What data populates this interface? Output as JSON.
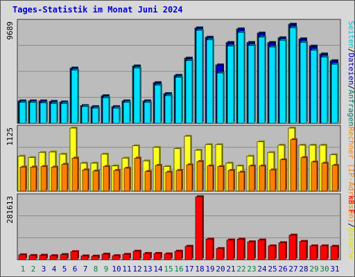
{
  "title": "Tages-Statistik im Monat Juni 2024",
  "colors": {
    "panel": "#bcbcbc",
    "hits": "#00806f",
    "files": "#0000c0",
    "pages": "#00e0ff",
    "visits": "#ffff20",
    "sites": "#ff8000",
    "kbytes": "#ff0000",
    "weekend_day": "#008040",
    "weekday": "#0000a0"
  },
  "chart_data": [
    {
      "type": "bar",
      "title": "Tages-Statistik im Monat Juni 2024",
      "ymax_label": "9689",
      "legend_label": "Seiten/Dateien/Anfragen",
      "legend_parts": [
        {
          "text": "Seiten",
          "color": "#00c0e0"
        },
        {
          "text": "/",
          "color": "#000000"
        },
        {
          "text": "Dateien",
          "color": "#0000c0"
        },
        {
          "text": "/",
          "color": "#000000"
        },
        {
          "text": "Anfragen",
          "color": "#00806f"
        }
      ],
      "ylim": [
        0,
        9689
      ],
      "series": [
        {
          "key": "hits",
          "values": [
            2150,
            2150,
            2150,
            2100,
            2050,
            5300,
            1700,
            1600,
            2650,
            1600,
            2150,
            5500,
            2150,
            3900,
            2850,
            4600,
            6250,
            9150,
            8250,
            5600,
            7750,
            9050,
            7750,
            8650,
            7750,
            8200,
            9500,
            8100,
            7400,
            6650,
            6000
          ]
        },
        {
          "key": "files",
          "values": [
            2150,
            2150,
            2150,
            2100,
            2050,
            5300,
            1700,
            1600,
            2650,
            1600,
            2150,
            5500,
            2150,
            3900,
            2850,
            4600,
            6250,
            9150,
            8250,
            5600,
            7750,
            9050,
            7750,
            8650,
            7750,
            8200,
            9500,
            8100,
            7400,
            6650,
            6000
          ]
        },
        {
          "key": "pages",
          "values": [
            2000,
            2000,
            1950,
            1900,
            1900,
            5100,
            1600,
            1450,
            2450,
            1450,
            2000,
            5300,
            2000,
            3650,
            2650,
            4400,
            6000,
            8900,
            8000,
            4800,
            7400,
            8700,
            7450,
            8250,
            7300,
            7950,
            9150,
            7750,
            7000,
            6350,
            5650
          ]
        }
      ]
    },
    {
      "type": "bar",
      "ymax_label": "1125",
      "legend_label": "Rechner (IP-Adressen)/Besuche",
      "legend_parts": [
        {
          "text": "Rechner (IP-Adressen)",
          "color": "#ff8000"
        },
        {
          "text": "/",
          "color": "#000000"
        },
        {
          "text": "Besuche",
          "color": "#e0e000"
        }
      ],
      "ylim": [
        0,
        1125
      ],
      "series": [
        {
          "key": "visits",
          "values": [
            625,
            600,
            690,
            700,
            660,
            1125,
            500,
            500,
            660,
            450,
            590,
            810,
            540,
            780,
            440,
            760,
            980,
            730,
            830,
            830,
            500,
            450,
            625,
            880,
            690,
            820,
            1125,
            820,
            820,
            820,
            650
          ]
        },
        {
          "key": "sites",
          "values": [
            430,
            430,
            440,
            430,
            480,
            590,
            380,
            360,
            440,
            370,
            410,
            590,
            350,
            460,
            340,
            370,
            470,
            530,
            450,
            440,
            370,
            340,
            450,
            450,
            380,
            560,
            920,
            600,
            520,
            500,
            460
          ]
        }
      ]
    },
    {
      "type": "bar",
      "ymax_label": "281613",
      "legend_label": "kB F",
      "legend_parts": [
        {
          "text": "kB F",
          "color": "#ff0000"
        }
      ],
      "ylim": [
        0,
        281613
      ],
      "series": [
        {
          "key": "kbytes",
          "values": [
            22000,
            19000,
            20000,
            18000,
            23000,
            36000,
            17000,
            16000,
            25000,
            18000,
            24000,
            38000,
            28000,
            28000,
            26000,
            38000,
            60000,
            281613,
            92000,
            50000,
            88000,
            92000,
            80000,
            88000,
            62000,
            76000,
            110000,
            82000,
            62000,
            62000,
            60000
          ]
        }
      ]
    }
  ],
  "x_labels": [
    "1",
    "2",
    "3",
    "4",
    "5",
    "6",
    "7",
    "8",
    "9",
    "10",
    "11",
    "12",
    "13",
    "14",
    "15",
    "16",
    "17",
    "18",
    "19",
    "20",
    "21",
    "22",
    "23",
    "24",
    "25",
    "26",
    "27",
    "28",
    "29",
    "30",
    "31"
  ],
  "weekend_days": [
    1,
    2,
    8,
    9,
    15,
    16,
    22,
    23,
    29,
    30
  ]
}
